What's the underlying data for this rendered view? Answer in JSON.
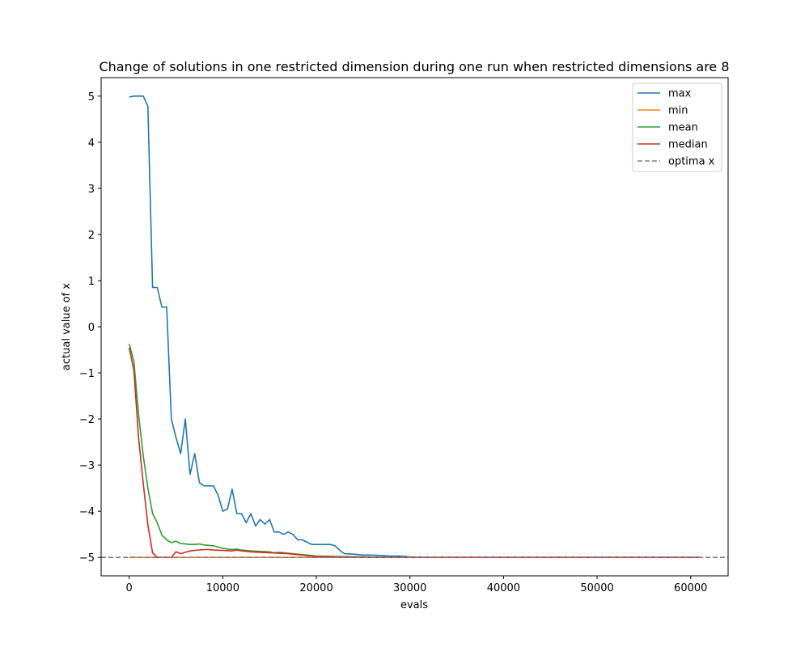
{
  "chart_data": {
    "type": "line",
    "title": "Change of solutions in one restricted dimension during one run when restricted dimensions are 8",
    "xlabel": "evals",
    "ylabel": "actual value of x",
    "xlim": [
      -3000,
      64000
    ],
    "ylim": [
      -5.4,
      5.4
    ],
    "x_ticks": [
      0,
      10000,
      20000,
      30000,
      40000,
      50000,
      60000
    ],
    "y_ticks": [
      -5,
      -4,
      -3,
      -2,
      -1,
      0,
      1,
      2,
      3,
      4,
      5
    ],
    "x_tick_labels": [
      "0",
      "10000",
      "20000",
      "30000",
      "40000",
      "50000",
      "60000"
    ],
    "y_tick_labels": [
      "−5",
      "−4",
      "−3",
      "−2",
      "−1",
      "0",
      "1",
      "2",
      "3",
      "4",
      "5"
    ],
    "grid": false,
    "legend_position": "top-right",
    "series": [
      {
        "name": "max",
        "color": "#1f77b4",
        "dash": "solid",
        "points": [
          [
            0,
            4.98
          ],
          [
            500,
            5.0
          ],
          [
            1000,
            5.0
          ],
          [
            1500,
            5.0
          ],
          [
            2000,
            4.78
          ],
          [
            2500,
            0.85
          ],
          [
            3000,
            0.85
          ],
          [
            3500,
            0.42
          ],
          [
            4000,
            0.43
          ],
          [
            4500,
            -2.0
          ],
          [
            5000,
            -2.4
          ],
          [
            5500,
            -2.75
          ],
          [
            6000,
            -2.0
          ],
          [
            6500,
            -3.2
          ],
          [
            7000,
            -2.75
          ],
          [
            7500,
            -3.38
          ],
          [
            8000,
            -3.45
          ],
          [
            8500,
            -3.45
          ],
          [
            9000,
            -3.45
          ],
          [
            9500,
            -3.65
          ],
          [
            10000,
            -4.0
          ],
          [
            10500,
            -3.95
          ],
          [
            11000,
            -3.52
          ],
          [
            11500,
            -4.05
          ],
          [
            12000,
            -4.05
          ],
          [
            12500,
            -4.25
          ],
          [
            13000,
            -4.05
          ],
          [
            13500,
            -4.32
          ],
          [
            14000,
            -4.18
          ],
          [
            14500,
            -4.28
          ],
          [
            15000,
            -4.18
          ],
          [
            15500,
            -4.45
          ],
          [
            16000,
            -4.45
          ],
          [
            16500,
            -4.5
          ],
          [
            17000,
            -4.45
          ],
          [
            17500,
            -4.5
          ],
          [
            18000,
            -4.62
          ],
          [
            18500,
            -4.62
          ],
          [
            19000,
            -4.67
          ],
          [
            19500,
            -4.72
          ],
          [
            20000,
            -4.72
          ],
          [
            21000,
            -4.72
          ],
          [
            21500,
            -4.72
          ],
          [
            22000,
            -4.75
          ],
          [
            22500,
            -4.85
          ],
          [
            23000,
            -4.92
          ],
          [
            24000,
            -4.93
          ],
          [
            25000,
            -4.95
          ],
          [
            26000,
            -4.95
          ],
          [
            27000,
            -4.96
          ],
          [
            28000,
            -4.97
          ],
          [
            29000,
            -4.97
          ],
          [
            29500,
            -4.98
          ],
          [
            30000,
            -4.99
          ],
          [
            32000,
            -5.0
          ],
          [
            61000,
            -5.0
          ]
        ]
      },
      {
        "name": "min",
        "color": "#ff7f0e",
        "dash": "solid",
        "points": [
          [
            0,
            -5.0
          ],
          [
            61000,
            -5.0
          ]
        ]
      },
      {
        "name": "mean",
        "color": "#2ca02c",
        "dash": "solid",
        "points": [
          [
            0,
            -0.37
          ],
          [
            500,
            -0.75
          ],
          [
            1000,
            -1.9
          ],
          [
            1500,
            -2.8
          ],
          [
            2000,
            -3.5
          ],
          [
            2500,
            -4.05
          ],
          [
            3000,
            -4.25
          ],
          [
            3500,
            -4.52
          ],
          [
            4000,
            -4.62
          ],
          [
            4500,
            -4.68
          ],
          [
            5000,
            -4.65
          ],
          [
            5500,
            -4.7
          ],
          [
            6000,
            -4.71
          ],
          [
            6500,
            -4.72
          ],
          [
            7000,
            -4.72
          ],
          [
            7500,
            -4.71
          ],
          [
            8000,
            -4.73
          ],
          [
            9000,
            -4.75
          ],
          [
            10000,
            -4.8
          ],
          [
            10500,
            -4.82
          ],
          [
            11000,
            -4.83
          ],
          [
            11500,
            -4.82
          ],
          [
            12000,
            -4.84
          ],
          [
            13000,
            -4.86
          ],
          [
            14000,
            -4.87
          ],
          [
            15000,
            -4.88
          ],
          [
            15500,
            -4.9
          ],
          [
            16000,
            -4.89
          ],
          [
            17000,
            -4.91
          ],
          [
            18000,
            -4.93
          ],
          [
            19000,
            -4.95
          ],
          [
            20000,
            -4.97
          ],
          [
            22000,
            -4.98
          ],
          [
            25000,
            -4.99
          ],
          [
            30000,
            -5.0
          ],
          [
            61000,
            -5.0
          ]
        ]
      },
      {
        "name": "median",
        "color": "#d62728",
        "dash": "solid",
        "points": [
          [
            0,
            -0.45
          ],
          [
            500,
            -0.95
          ],
          [
            1000,
            -2.4
          ],
          [
            1500,
            -3.4
          ],
          [
            2000,
            -4.3
          ],
          [
            2500,
            -4.9
          ],
          [
            3000,
            -5.0
          ],
          [
            3500,
            -5.0
          ],
          [
            4000,
            -5.0
          ],
          [
            4500,
            -5.0
          ],
          [
            5000,
            -4.88
          ],
          [
            5500,
            -4.92
          ],
          [
            6000,
            -4.89
          ],
          [
            6500,
            -4.86
          ],
          [
            7000,
            -4.85
          ],
          [
            8000,
            -4.83
          ],
          [
            8500,
            -4.83
          ],
          [
            9000,
            -4.84
          ],
          [
            10000,
            -4.85
          ],
          [
            11000,
            -4.86
          ],
          [
            11500,
            -4.84
          ],
          [
            12000,
            -4.86
          ],
          [
            13000,
            -4.88
          ],
          [
            14000,
            -4.89
          ],
          [
            15000,
            -4.9
          ],
          [
            16000,
            -4.91
          ],
          [
            17000,
            -4.92
          ],
          [
            18000,
            -4.94
          ],
          [
            19000,
            -4.96
          ],
          [
            20000,
            -4.98
          ],
          [
            22000,
            -4.99
          ],
          [
            25000,
            -5.0
          ],
          [
            61000,
            -5.0
          ]
        ]
      },
      {
        "name": "optima x",
        "color": "#808080",
        "dash": "dashed",
        "points": [
          [
            -3000,
            -5.0
          ],
          [
            64000,
            -5.0
          ]
        ]
      }
    ]
  }
}
